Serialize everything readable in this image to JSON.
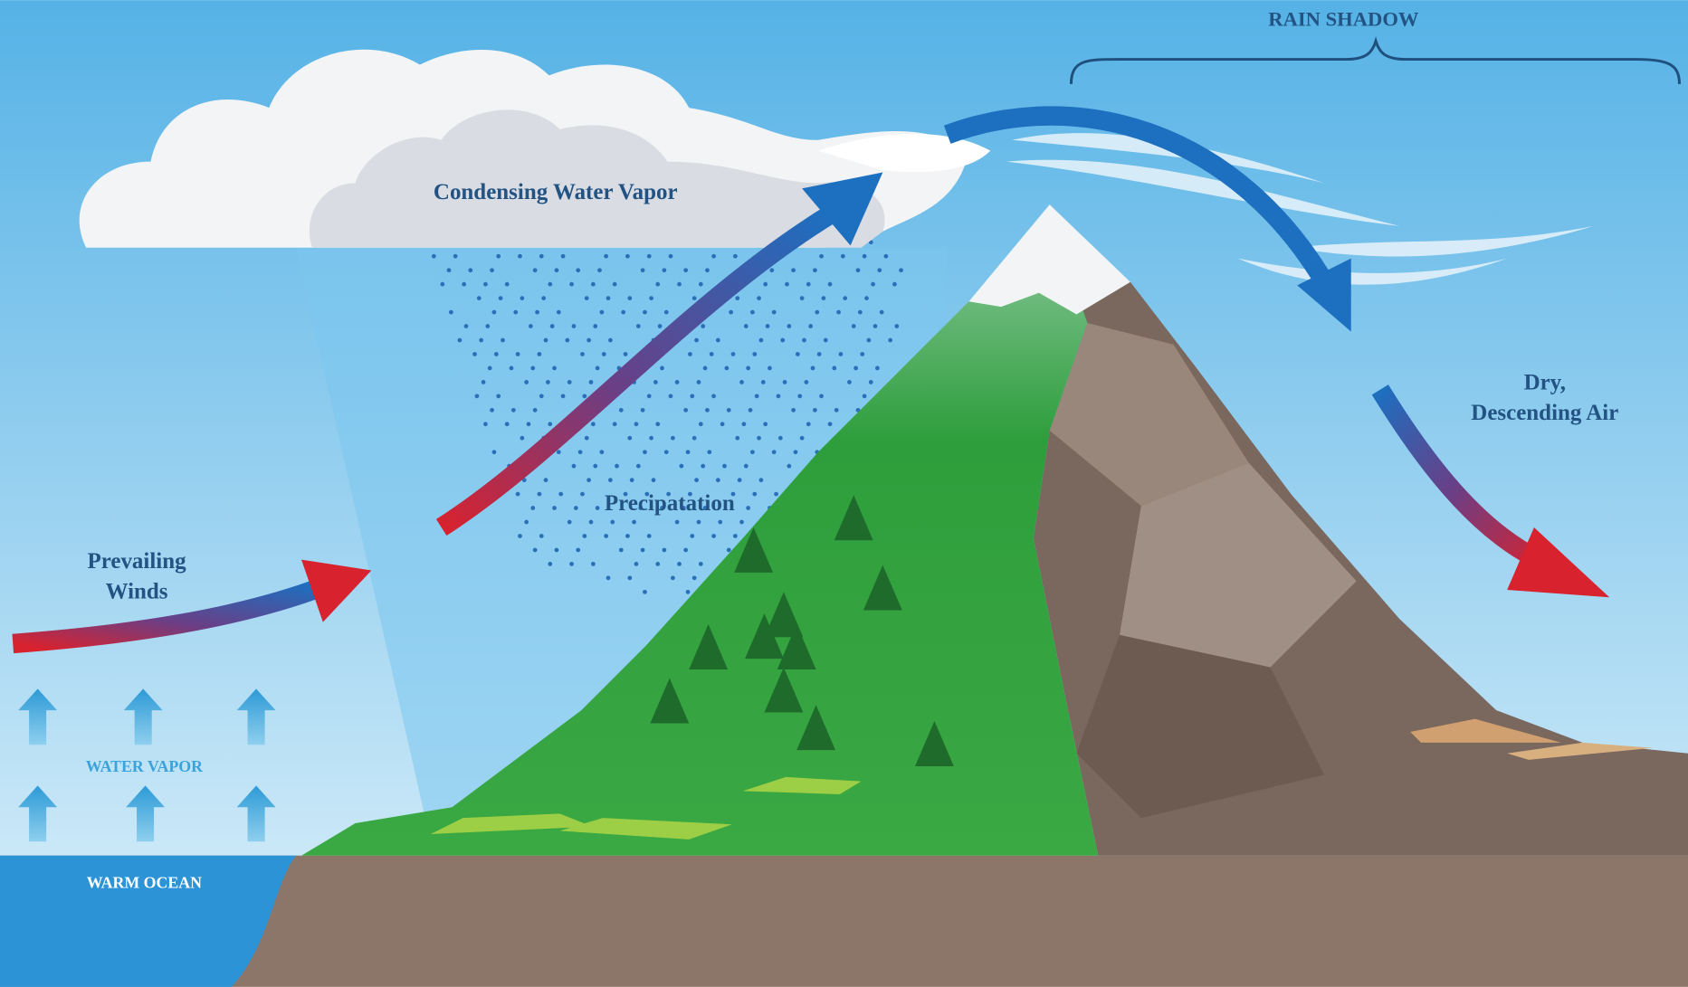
{
  "labels": {
    "rain_shadow": "RAIN SHADOW",
    "condensing": "Condensing Water Vapor",
    "precipitation": "Precipatation",
    "prevailing_winds": [
      "Prevailing",
      "Winds"
    ],
    "dry_air": [
      "Dry,",
      "Descending Air"
    ],
    "water_vapor": "WATER VAPOR",
    "warm_ocean": "WARM OCEAN"
  }
}
